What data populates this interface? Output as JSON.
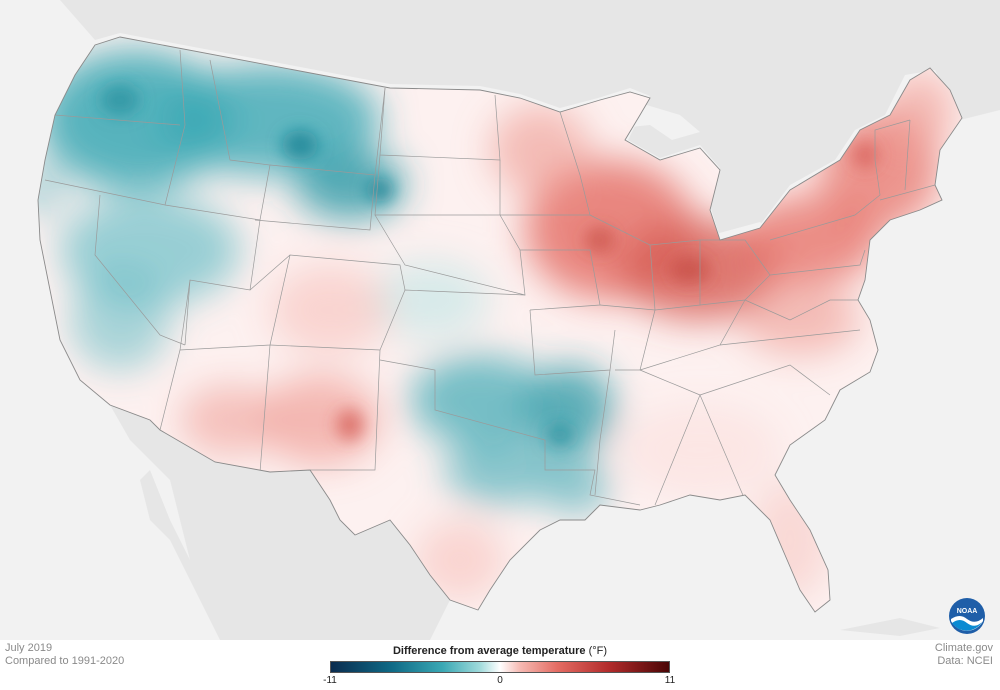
{
  "caption": {
    "date": "July 2019",
    "baseline": "Compared to 1991-2020"
  },
  "credits": {
    "site": "Climate.gov",
    "source": "Data: NCEI"
  },
  "legend": {
    "title": "Difference from average temperature",
    "units": "(°F)",
    "min_label": "-11",
    "mid_label": "0",
    "max_label": "11"
  },
  "logo": {
    "text": "NOAA",
    "icon": "noaa-logo"
  },
  "colors": {
    "ocean": "#f2f2f2",
    "land_outside": "#e4e4e4",
    "cool": "#3aa8b4",
    "warm": "#e46c63",
    "state_border": "#9a9a9a"
  }
}
